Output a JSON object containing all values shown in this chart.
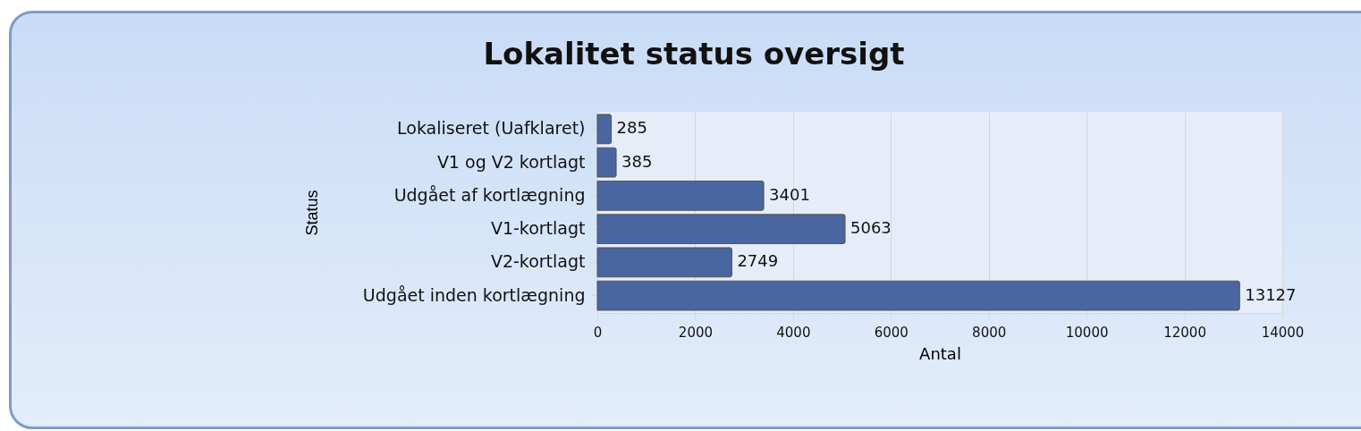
{
  "chart_data": {
    "type": "bar",
    "orientation": "horizontal",
    "title": "Lokalitet status oversigt",
    "xlabel": "Antal",
    "ylabel": "Status",
    "categories": [
      "Lokaliseret (Uafklaret)",
      "V1 og V2 kortlagt",
      "Udgået af kortlægning",
      "V1-kortlagt",
      "V2-kortlagt",
      "Udgået inden kortlægning"
    ],
    "values": [
      285,
      385,
      3401,
      5063,
      2749,
      13127
    ],
    "color": "#4a66a0",
    "data_labels": true,
    "xlim": [
      0,
      14000
    ],
    "xticks": [
      0,
      2000,
      4000,
      6000,
      8000,
      10000,
      12000,
      14000
    ],
    "grid": "x"
  }
}
